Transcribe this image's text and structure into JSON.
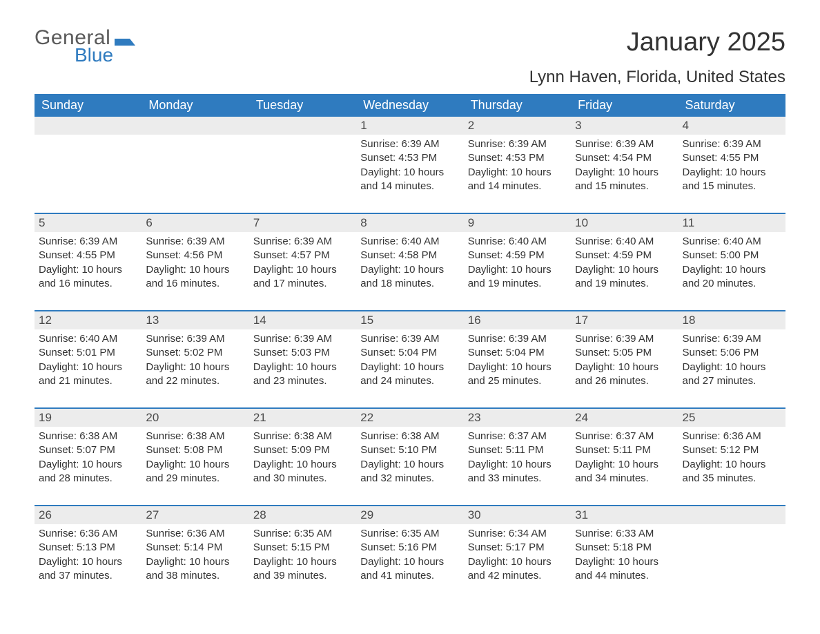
{
  "brand": {
    "general": "General",
    "blue": "Blue"
  },
  "title": "January 2025",
  "subtitle": "Lynn Haven, Florida, United States",
  "colors": {
    "header_bg": "#2f7bbf",
    "header_text": "#ffffff",
    "daynum_bg": "#ececec",
    "row_divider": "#2f7bbf",
    "body_text": "#333333",
    "logo_gray": "#5a5a5a",
    "logo_blue": "#2f7bbf",
    "page_bg": "#ffffff"
  },
  "typography": {
    "title_fontsize": 38,
    "subtitle_fontsize": 24,
    "header_fontsize": 18,
    "daynum_fontsize": 17,
    "body_fontsize": 15,
    "font_family": "Arial"
  },
  "day_headers": [
    "Sunday",
    "Monday",
    "Tuesday",
    "Wednesday",
    "Thursday",
    "Friday",
    "Saturday"
  ],
  "line_templates": {
    "sunrise": "Sunrise: {v}",
    "sunset": "Sunset: {v}",
    "daylight": "Daylight: {h} hours and {m} minutes."
  },
  "weeks": [
    [
      null,
      null,
      null,
      {
        "n": 1,
        "sunrise": "6:39 AM",
        "sunset": "4:53 PM",
        "dh": 10,
        "dm": 14
      },
      {
        "n": 2,
        "sunrise": "6:39 AM",
        "sunset": "4:53 PM",
        "dh": 10,
        "dm": 14
      },
      {
        "n": 3,
        "sunrise": "6:39 AM",
        "sunset": "4:54 PM",
        "dh": 10,
        "dm": 15
      },
      {
        "n": 4,
        "sunrise": "6:39 AM",
        "sunset": "4:55 PM",
        "dh": 10,
        "dm": 15
      }
    ],
    [
      {
        "n": 5,
        "sunrise": "6:39 AM",
        "sunset": "4:55 PM",
        "dh": 10,
        "dm": 16
      },
      {
        "n": 6,
        "sunrise": "6:39 AM",
        "sunset": "4:56 PM",
        "dh": 10,
        "dm": 16
      },
      {
        "n": 7,
        "sunrise": "6:39 AM",
        "sunset": "4:57 PM",
        "dh": 10,
        "dm": 17
      },
      {
        "n": 8,
        "sunrise": "6:40 AM",
        "sunset": "4:58 PM",
        "dh": 10,
        "dm": 18
      },
      {
        "n": 9,
        "sunrise": "6:40 AM",
        "sunset": "4:59 PM",
        "dh": 10,
        "dm": 19
      },
      {
        "n": 10,
        "sunrise": "6:40 AM",
        "sunset": "4:59 PM",
        "dh": 10,
        "dm": 19
      },
      {
        "n": 11,
        "sunrise": "6:40 AM",
        "sunset": "5:00 PM",
        "dh": 10,
        "dm": 20
      }
    ],
    [
      {
        "n": 12,
        "sunrise": "6:40 AM",
        "sunset": "5:01 PM",
        "dh": 10,
        "dm": 21
      },
      {
        "n": 13,
        "sunrise": "6:39 AM",
        "sunset": "5:02 PM",
        "dh": 10,
        "dm": 22
      },
      {
        "n": 14,
        "sunrise": "6:39 AM",
        "sunset": "5:03 PM",
        "dh": 10,
        "dm": 23
      },
      {
        "n": 15,
        "sunrise": "6:39 AM",
        "sunset": "5:04 PM",
        "dh": 10,
        "dm": 24
      },
      {
        "n": 16,
        "sunrise": "6:39 AM",
        "sunset": "5:04 PM",
        "dh": 10,
        "dm": 25
      },
      {
        "n": 17,
        "sunrise": "6:39 AM",
        "sunset": "5:05 PM",
        "dh": 10,
        "dm": 26
      },
      {
        "n": 18,
        "sunrise": "6:39 AM",
        "sunset": "5:06 PM",
        "dh": 10,
        "dm": 27
      }
    ],
    [
      {
        "n": 19,
        "sunrise": "6:38 AM",
        "sunset": "5:07 PM",
        "dh": 10,
        "dm": 28
      },
      {
        "n": 20,
        "sunrise": "6:38 AM",
        "sunset": "5:08 PM",
        "dh": 10,
        "dm": 29
      },
      {
        "n": 21,
        "sunrise": "6:38 AM",
        "sunset": "5:09 PM",
        "dh": 10,
        "dm": 30
      },
      {
        "n": 22,
        "sunrise": "6:38 AM",
        "sunset": "5:10 PM",
        "dh": 10,
        "dm": 32
      },
      {
        "n": 23,
        "sunrise": "6:37 AM",
        "sunset": "5:11 PM",
        "dh": 10,
        "dm": 33
      },
      {
        "n": 24,
        "sunrise": "6:37 AM",
        "sunset": "5:11 PM",
        "dh": 10,
        "dm": 34
      },
      {
        "n": 25,
        "sunrise": "6:36 AM",
        "sunset": "5:12 PM",
        "dh": 10,
        "dm": 35
      }
    ],
    [
      {
        "n": 26,
        "sunrise": "6:36 AM",
        "sunset": "5:13 PM",
        "dh": 10,
        "dm": 37
      },
      {
        "n": 27,
        "sunrise": "6:36 AM",
        "sunset": "5:14 PM",
        "dh": 10,
        "dm": 38
      },
      {
        "n": 28,
        "sunrise": "6:35 AM",
        "sunset": "5:15 PM",
        "dh": 10,
        "dm": 39
      },
      {
        "n": 29,
        "sunrise": "6:35 AM",
        "sunset": "5:16 PM",
        "dh": 10,
        "dm": 41
      },
      {
        "n": 30,
        "sunrise": "6:34 AM",
        "sunset": "5:17 PM",
        "dh": 10,
        "dm": 42
      },
      {
        "n": 31,
        "sunrise": "6:33 AM",
        "sunset": "5:18 PM",
        "dh": 10,
        "dm": 44
      },
      null
    ]
  ]
}
